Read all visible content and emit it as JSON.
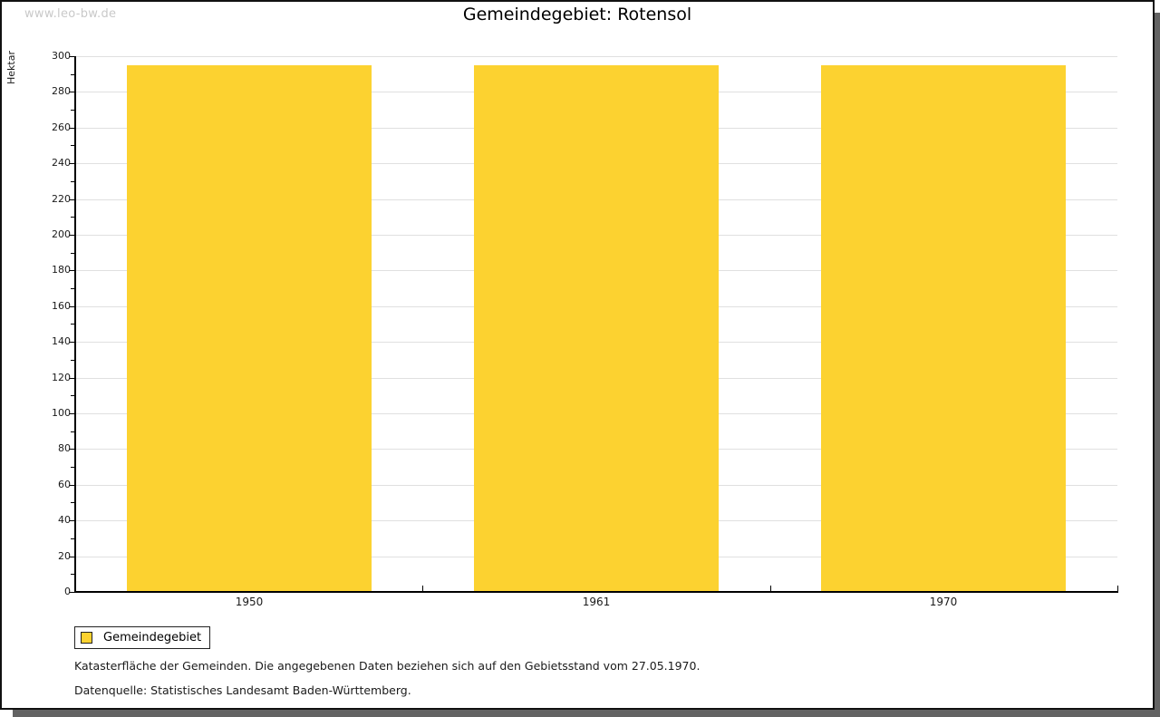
{
  "watermark": "www.leo-bw.de",
  "title": "Gemeindegebiet: Rotensol",
  "chart_data": {
    "type": "bar",
    "categories": [
      "1950",
      "1961",
      "1970"
    ],
    "series": [
      {
        "name": "Gemeindegebiet",
        "values": [
          295,
          295,
          295
        ]
      }
    ],
    "title": "Gemeindegebiet: Rotensol",
    "xlabel": "",
    "ylabel": "Hektar",
    "ylim": [
      0,
      300
    ],
    "ytick_step": 20,
    "yminor_step": 10,
    "yticks": [
      0,
      20,
      40,
      60,
      80,
      100,
      120,
      140,
      160,
      180,
      200,
      220,
      240,
      260,
      280,
      300
    ],
    "grid": true,
    "bar_color": "#FCD230",
    "gridline_color": "#e0e0e0",
    "legend_position": "bottom-left"
  },
  "legend": {
    "items": [
      {
        "label": "Gemeindegebiet",
        "color": "#FCD230"
      }
    ]
  },
  "footer": {
    "line1": "Katasterfläche der Gemeinden. Die angegebenen Daten beziehen sich auf den Gebietsstand vom 27.05.1970.",
    "line2": "Datenquelle: Statistisches Landesamt Baden-Württemberg."
  }
}
